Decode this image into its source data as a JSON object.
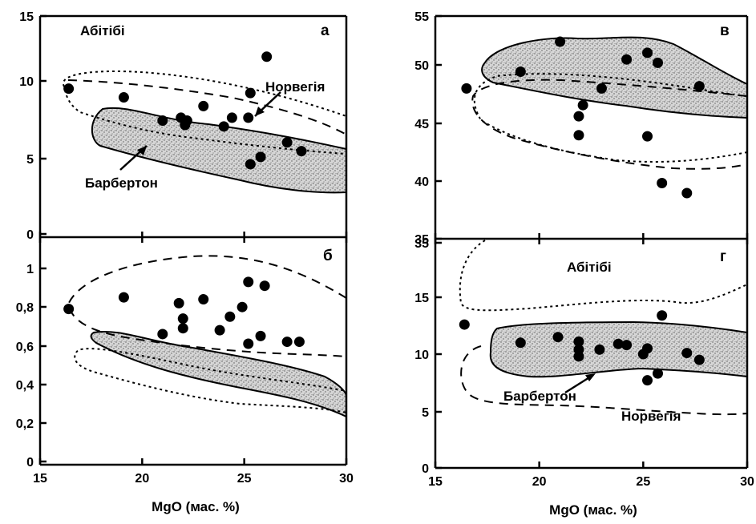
{
  "chart_data": [
    {
      "panel": "а",
      "type": "scatter",
      "xlim": [
        15,
        30
      ],
      "ylim": [
        0,
        15
      ],
      "yticks": [
        "0",
        "5",
        "10",
        "15"
      ],
      "xticks": [
        15,
        20,
        25,
        30
      ],
      "points": [
        {
          "x": 16.4,
          "y": 10.0
        },
        {
          "x": 19.1,
          "y": 9.4
        },
        {
          "x": 21.0,
          "y": 7.8
        },
        {
          "x": 21.9,
          "y": 8.0
        },
        {
          "x": 22.1,
          "y": 7.5
        },
        {
          "x": 22.2,
          "y": 7.8
        },
        {
          "x": 23.0,
          "y": 8.8
        },
        {
          "x": 24.0,
          "y": 7.4
        },
        {
          "x": 24.4,
          "y": 8.0
        },
        {
          "x": 25.2,
          "y": 8.0
        },
        {
          "x": 25.3,
          "y": 9.7
        },
        {
          "x": 25.3,
          "y": 4.8
        },
        {
          "x": 25.8,
          "y": 5.3
        },
        {
          "x": 26.1,
          "y": 12.2
        },
        {
          "x": 27.1,
          "y": 6.3
        },
        {
          "x": 27.8,
          "y": 5.7
        }
      ],
      "annotations": [
        "Абітібі",
        "Норвегія",
        "Барбертон"
      ]
    },
    {
      "panel": "б",
      "type": "scatter",
      "xlim": [
        15,
        30
      ],
      "ylim": [
        0,
        1.1
      ],
      "yticks": [
        "0",
        "0,2",
        "0,4",
        "0,6",
        "0,8",
        "1"
      ],
      "xticks": [
        15,
        20,
        25,
        30
      ],
      "points": [
        {
          "x": 16.4,
          "y": 0.79
        },
        {
          "x": 19.1,
          "y": 0.85
        },
        {
          "x": 21.0,
          "y": 0.66
        },
        {
          "x": 21.8,
          "y": 0.82
        },
        {
          "x": 22.0,
          "y": 0.74
        },
        {
          "x": 22.0,
          "y": 0.69
        },
        {
          "x": 23.0,
          "y": 0.84
        },
        {
          "x": 23.8,
          "y": 0.68
        },
        {
          "x": 24.3,
          "y": 0.75
        },
        {
          "x": 24.9,
          "y": 0.8
        },
        {
          "x": 25.2,
          "y": 0.93
        },
        {
          "x": 25.2,
          "y": 0.61
        },
        {
          "x": 25.8,
          "y": 0.65
        },
        {
          "x": 26.0,
          "y": 0.91
        },
        {
          "x": 27.1,
          "y": 0.62
        },
        {
          "x": 27.7,
          "y": 0.62
        }
      ]
    },
    {
      "panel": "в",
      "type": "scatter",
      "xlim": [
        15,
        30
      ],
      "ylim": [
        35,
        55
      ],
      "yticks": [
        "35",
        "40",
        "45",
        "50",
        "55"
      ],
      "xticks": [
        15,
        20,
        25,
        30
      ],
      "points": [
        {
          "x": 16.5,
          "y": 48.5
        },
        {
          "x": 19.1,
          "y": 50.0
        },
        {
          "x": 21.0,
          "y": 52.7
        },
        {
          "x": 21.9,
          "y": 46.0
        },
        {
          "x": 21.9,
          "y": 44.3
        },
        {
          "x": 22.1,
          "y": 47.0
        },
        {
          "x": 23.0,
          "y": 48.5
        },
        {
          "x": 24.2,
          "y": 51.1
        },
        {
          "x": 25.2,
          "y": 51.7
        },
        {
          "x": 25.2,
          "y": 44.2
        },
        {
          "x": 25.7,
          "y": 50.8
        },
        {
          "x": 25.9,
          "y": 40.0
        },
        {
          "x": 27.1,
          "y": 39.1
        },
        {
          "x": 27.7,
          "y": 48.7
        }
      ]
    },
    {
      "panel": "г",
      "type": "scatter",
      "xlim": [
        15,
        30
      ],
      "ylim": [
        0,
        35
      ],
      "yticks": [
        "0",
        "5",
        "10",
        "15",
        "35"
      ],
      "xticks": [
        "15",
        "20",
        "25",
        "30"
      ],
      "points": [
        {
          "x": 16.4,
          "y": 12.6
        },
        {
          "x": 19.1,
          "y": 11.0
        },
        {
          "x": 20.9,
          "y": 11.5
        },
        {
          "x": 21.9,
          "y": 11.1
        },
        {
          "x": 21.9,
          "y": 10.4
        },
        {
          "x": 21.9,
          "y": 9.8
        },
        {
          "x": 22.9,
          "y": 10.4
        },
        {
          "x": 23.8,
          "y": 10.9
        },
        {
          "x": 24.2,
          "y": 10.8
        },
        {
          "x": 25.0,
          "y": 10.0
        },
        {
          "x": 25.2,
          "y": 10.5
        },
        {
          "x": 25.2,
          "y": 7.7
        },
        {
          "x": 25.7,
          "y": 8.3
        },
        {
          "x": 25.9,
          "y": 13.4
        },
        {
          "x": 27.1,
          "y": 10.1
        },
        {
          "x": 27.7,
          "y": 9.5
        }
      ],
      "annotations": [
        "Абітібі",
        "Барбертон",
        "Норвегія"
      ]
    }
  ],
  "xlabel": "MgO (мас. %)"
}
